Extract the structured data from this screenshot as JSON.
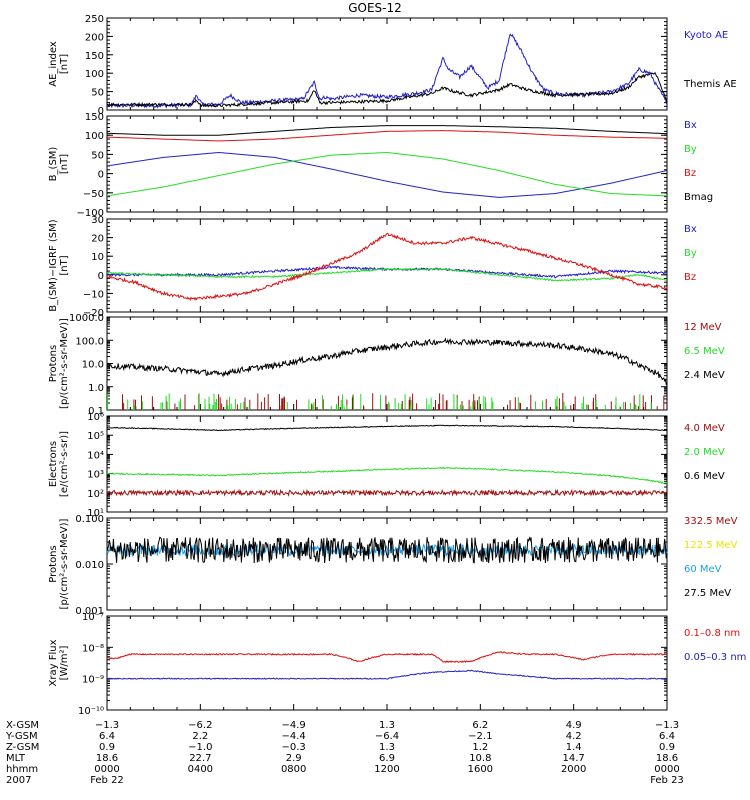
{
  "title": "GOES-12",
  "colors": {
    "black": "#000000",
    "blue": "#2020c8",
    "green": "#22dd22",
    "red": "#dd1111",
    "darkred": "#a01010",
    "cyan": "#1ea0e6",
    "yellow": "#e6e600"
  },
  "chart_data": [
    {
      "type": "line",
      "panel": "ae-index",
      "ylabel_lines": [
        "AE_index",
        "[nT]"
      ],
      "ylim": [
        0,
        250
      ],
      "yticks": [
        0,
        50,
        100,
        150,
        200,
        250
      ],
      "ytick_labels": [
        "0",
        "50",
        "100",
        "150",
        "200",
        "250"
      ],
      "log": false,
      "series": [
        {
          "name": "Kyoto AE",
          "color": "#2020c8",
          "noise": 5,
          "x": [
            0,
            0.1,
            0.15,
            0.16,
            0.17,
            0.2,
            0.22,
            0.24,
            0.25,
            0.3,
            0.35,
            0.37,
            0.38,
            0.39,
            0.4,
            0.45,
            0.5,
            0.55,
            0.58,
            0.59,
            0.6,
            0.61,
            0.63,
            0.65,
            0.68,
            0.7,
            0.72,
            0.74,
            0.76,
            0.78,
            0.8,
            0.85,
            0.9,
            0.93,
            0.95,
            0.97,
            0.98,
            1
          ],
          "y": [
            12,
            12,
            14,
            40,
            15,
            15,
            40,
            20,
            20,
            25,
            30,
            75,
            30,
            35,
            30,
            40,
            35,
            45,
            55,
            100,
            140,
            110,
            90,
            120,
            60,
            80,
            210,
            160,
            100,
            55,
            45,
            40,
            50,
            70,
            110,
            100,
            70,
            20
          ]
        },
        {
          "name": "Themis AE",
          "color": "#000000",
          "noise": 4,
          "x": [
            0,
            0.15,
            0.16,
            0.17,
            0.2,
            0.3,
            0.36,
            0.37,
            0.38,
            0.4,
            0.5,
            0.58,
            0.6,
            0.62,
            0.65,
            0.7,
            0.72,
            0.75,
            0.8,
            0.9,
            0.93,
            0.95,
            0.98,
            1
          ],
          "y": [
            15,
            15,
            25,
            12,
            12,
            20,
            25,
            55,
            20,
            20,
            25,
            45,
            60,
            50,
            40,
            55,
            70,
            55,
            40,
            45,
            60,
            90,
            100,
            20
          ]
        }
      ]
    },
    {
      "type": "line",
      "panel": "b-sm",
      "ylabel_lines": [
        "B_(SM)",
        "[nT]"
      ],
      "ylim": [
        -100,
        150
      ],
      "yticks": [
        -100,
        -50,
        0,
        50,
        100,
        150
      ],
      "ytick_labels": [
        "−100",
        "−50",
        "0",
        "50",
        "100",
        "150"
      ],
      "log": false,
      "series": [
        {
          "name": "Bx",
          "color": "#2020c8",
          "noise": 0,
          "x": [
            0,
            0.1,
            0.2,
            0.3,
            0.4,
            0.5,
            0.6,
            0.7,
            0.8,
            0.9,
            1
          ],
          "y": [
            20,
            42,
            55,
            42,
            12,
            -20,
            -48,
            -62,
            -52,
            -25,
            8
          ]
        },
        {
          "name": "By",
          "color": "#22dd22",
          "noise": 0,
          "x": [
            0,
            0.1,
            0.2,
            0.3,
            0.4,
            0.5,
            0.6,
            0.7,
            0.8,
            0.9,
            1
          ],
          "y": [
            -58,
            -35,
            -5,
            25,
            48,
            55,
            38,
            8,
            -28,
            -52,
            -58
          ]
        },
        {
          "name": "Bz",
          "color": "#dd1111",
          "noise": 0,
          "x": [
            0,
            0.1,
            0.2,
            0.3,
            0.4,
            0.5,
            0.6,
            0.7,
            0.8,
            0.9,
            1
          ],
          "y": [
            95,
            90,
            85,
            90,
            100,
            110,
            112,
            108,
            100,
            95,
            92
          ]
        },
        {
          "name": "Bmag",
          "color": "#000000",
          "noise": 0,
          "x": [
            0,
            0.1,
            0.2,
            0.3,
            0.4,
            0.5,
            0.6,
            0.7,
            0.8,
            0.9,
            1
          ],
          "y": [
            105,
            100,
            100,
            110,
            120,
            125,
            125,
            122,
            118,
            110,
            104
          ]
        }
      ]
    },
    {
      "type": "line",
      "panel": "b-igrf",
      "ylabel_lines": [
        "B_(SM)−IGRF (SM)",
        "[nT]"
      ],
      "ylim": [
        -20,
        30
      ],
      "yticks": [
        -20,
        -10,
        0,
        10,
        20,
        30
      ],
      "ytick_labels": [
        "−20",
        "−10",
        "0",
        "10",
        "20",
        "30"
      ],
      "log": false,
      "series": [
        {
          "name": "Bx",
          "color": "#2020c8",
          "noise": 0.6,
          "x": [
            0,
            0.2,
            0.3,
            0.4,
            0.5,
            0.6,
            0.7,
            0.8,
            0.9,
            1
          ],
          "y": [
            0,
            0,
            2,
            4,
            3,
            3,
            1,
            -1,
            2,
            1
          ]
        },
        {
          "name": "By",
          "color": "#22dd22",
          "noise": 0.4,
          "x": [
            0,
            0.1,
            0.2,
            0.3,
            0.4,
            0.5,
            0.6,
            0.7,
            0.8,
            0.9,
            0.95,
            1
          ],
          "y": [
            1,
            0,
            -1,
            -1,
            1,
            3,
            3,
            0,
            -3,
            -2,
            0,
            -3
          ]
        },
        {
          "name": "Bz",
          "color": "#dd1111",
          "noise": 0.8,
          "x": [
            0,
            0.05,
            0.1,
            0.15,
            0.25,
            0.35,
            0.45,
            0.5,
            0.55,
            0.6,
            0.65,
            0.75,
            0.85,
            0.9,
            0.95,
            1
          ],
          "y": [
            -1,
            -4,
            -10,
            -13,
            -10,
            0,
            12,
            22,
            17,
            17,
            20,
            13,
            5,
            0,
            -5,
            -7
          ]
        }
      ]
    },
    {
      "type": "line",
      "panel": "protons-low",
      "ylabel_lines": [
        "Protons",
        "[p/(cm²-s-sr-MeV)]"
      ],
      "ylim": [
        0.1,
        1000
      ],
      "yticks": [
        0.1,
        1,
        10,
        100,
        1000
      ],
      "ytick_labels": [
        "0.1",
        "1.0",
        "10.0",
        "100.0",
        "1000.0"
      ],
      "log": true,
      "series": [
        {
          "name": "12 MeV",
          "color": "#a01010",
          "noise": 0,
          "spikes": true,
          "x": [
            0,
            1
          ],
          "y": [
            0.1,
            0.1
          ]
        },
        {
          "name": "6.5 MeV",
          "color": "#22dd22",
          "noise": 0,
          "spikes": true,
          "x": [
            0,
            1
          ],
          "y": [
            0.1,
            0.1
          ]
        },
        {
          "name": "2.4 MeV",
          "color": "#000000",
          "noise": 0.12,
          "x": [
            0,
            0.1,
            0.2,
            0.3,
            0.4,
            0.5,
            0.6,
            0.7,
            0.8,
            0.9,
            0.95,
            1
          ],
          "y": [
            8,
            6,
            3.5,
            8,
            20,
            50,
            90,
            80,
            60,
            25,
            8,
            1.2
          ]
        }
      ]
    },
    {
      "type": "line",
      "panel": "electrons",
      "ylabel_lines": [
        "Electrons",
        "[e/(cm²-s-sr)]"
      ],
      "ylim": [
        10,
        1000000
      ],
      "yticks": [
        10,
        100,
        1000,
        10000,
        100000,
        1000000
      ],
      "ytick_labels": [
        "10¹",
        "10²",
        "10³",
        "10⁴",
        "10⁵",
        "10⁶"
      ],
      "log": true,
      "series": [
        {
          "name": "4.0 MeV",
          "color": "#a01010",
          "noise": 0.12,
          "x": [
            0,
            1
          ],
          "y": [
            100,
            100
          ]
        },
        {
          "name": "2.0 MeV",
          "color": "#22dd22",
          "noise": 0.03,
          "x": [
            0,
            0.2,
            0.4,
            0.6,
            0.8,
            1
          ],
          "y": [
            1000,
            800,
            1300,
            2000,
            1200,
            300
          ]
        },
        {
          "name": "0.6 MeV",
          "color": "#000000",
          "noise": 0.02,
          "x": [
            0,
            0.2,
            0.4,
            0.6,
            0.8,
            1
          ],
          "y": [
            250000,
            180000,
            250000,
            320000,
            280000,
            180000
          ]
        }
      ]
    },
    {
      "type": "line",
      "panel": "protons-high",
      "ylabel_lines": [
        "Protons",
        "[p/(cm²-s-sr-MeV)]"
      ],
      "ylim": [
        0.001,
        0.1
      ],
      "yticks": [
        0.001,
        0.01,
        0.1
      ],
      "ytick_labels": [
        "0.001",
        "0.010",
        "0.100"
      ],
      "log": true,
      "series": [
        {
          "name": "332.5 MeV",
          "color": "#a01010",
          "noise": 0,
          "x": [
            0,
            1
          ],
          "y": [
            0.02,
            0.02
          ],
          "hidden": true
        },
        {
          "name": "122.5 MeV",
          "color": "#e6e600",
          "noise": 0,
          "x": [
            0,
            1
          ],
          "y": [
            0.02,
            0.02
          ],
          "hidden": true
        },
        {
          "name": "60 MeV",
          "color": "#1ea0e6",
          "noise": 0.12,
          "x": [
            0,
            1
          ],
          "y": [
            0.02,
            0.02
          ]
        },
        {
          "name": "27.5 MeV",
          "color": "#000000",
          "noise": 0.28,
          "x": [
            0,
            1
          ],
          "y": [
            0.02,
            0.02
          ]
        }
      ]
    },
    {
      "type": "line",
      "panel": "xray",
      "ylabel_lines": [
        "Xray Flux",
        "[W/m²]"
      ],
      "ylim": [
        1e-10,
        1e-07
      ],
      "yticks": [
        1e-10,
        1e-09,
        1e-08,
        1e-07
      ],
      "ytick_labels": [
        "10⁻¹⁰",
        "10⁻⁹",
        "10⁻⁸",
        "10⁻⁷"
      ],
      "log": true,
      "series": [
        {
          "name": "0.1–0.8 nm",
          "color": "#dd1111",
          "noise": 0.02,
          "x": [
            0,
            0.02,
            0.04,
            0.1,
            0.2,
            0.3,
            0.35,
            0.4,
            0.45,
            0.5,
            0.55,
            0.58,
            0.6,
            0.65,
            0.7,
            0.75,
            0.8,
            0.85,
            0.9,
            0.95,
            1
          ],
          "y": [
            4.5e-09,
            4.5e-09,
            6e-09,
            6e-09,
            6e-09,
            6e-09,
            6e-09,
            6e-09,
            3.5e-09,
            6e-09,
            6e-09,
            6e-09,
            3.5e-09,
            3.5e-09,
            7e-09,
            6e-09,
            6e-09,
            4e-09,
            6e-09,
            6e-09,
            6e-09
          ]
        },
        {
          "name": "0.05–0.3 nm",
          "color": "#2020c8",
          "noise": 0.015,
          "x": [
            0,
            0.3,
            0.5,
            0.58,
            0.65,
            0.7,
            0.8,
            1
          ],
          "y": [
            1e-09,
            1e-09,
            1e-09,
            1.6e-09,
            1.8e-09,
            1.4e-09,
            1e-09,
            1e-09
          ]
        }
      ]
    }
  ],
  "xaxis": {
    "row_labels": [
      "X-GSM",
      "Y-GSM",
      "Z-GSM",
      "MLT",
      "hhmm",
      "2007"
    ],
    "columns": [
      {
        "values": [
          "−1.3",
          "6.4",
          "0.9",
          "18.6",
          "0000",
          "Feb 22"
        ]
      },
      {
        "values": [
          "−6.2",
          "2.2",
          "−1.0",
          "22.7",
          "0400",
          ""
        ]
      },
      {
        "values": [
          "−4.9",
          "−4.4",
          "−0.3",
          "2.9",
          "0800",
          ""
        ]
      },
      {
        "values": [
          "1.3",
          "−6.4",
          "1.3",
          "6.9",
          "1200",
          ""
        ]
      },
      {
        "values": [
          "6.2",
          "−2.1",
          "1.2",
          "10.8",
          "1600",
          ""
        ]
      },
      {
        "values": [
          "4.9",
          "4.2",
          "1.4",
          "14.7",
          "2000",
          ""
        ]
      },
      {
        "values": [
          "−1.3",
          "6.4",
          "0.9",
          "18.6",
          "0000",
          "Feb 23"
        ]
      }
    ]
  }
}
